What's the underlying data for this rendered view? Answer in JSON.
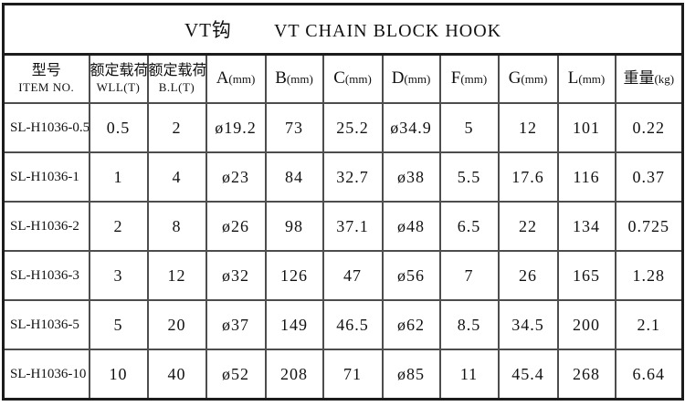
{
  "title": {
    "cn": "VT钩",
    "en": "VT CHAIN BLOCK HOOK"
  },
  "table": {
    "columns": [
      {
        "cn": "型号",
        "en": "ITEM NO."
      },
      {
        "cn": "额定载荷",
        "en": "WLL(T)"
      },
      {
        "cn": "额定载荷",
        "en": "B.L(T)"
      },
      {
        "label": "A",
        "unit": "(mm)"
      },
      {
        "label": "B",
        "unit": "(mm)"
      },
      {
        "label": "C",
        "unit": "(mm)"
      },
      {
        "label": "D",
        "unit": "(mm)"
      },
      {
        "label": "F",
        "unit": "(mm)"
      },
      {
        "label": "G",
        "unit": "(mm)"
      },
      {
        "label": "L",
        "unit": "(mm)"
      },
      {
        "label": "重量",
        "unit": "(kg)"
      }
    ],
    "rows": [
      [
        "SL-H1036-0.5",
        "0.5",
        "2",
        "ø19.2",
        "73",
        "25.2",
        "ø34.9",
        "5",
        "12",
        "101",
        "0.22"
      ],
      [
        "SL-H1036-1",
        "1",
        "4",
        "ø23",
        "84",
        "32.7",
        "ø38",
        "5.5",
        "17.6",
        "116",
        "0.37"
      ],
      [
        "SL-H1036-2",
        "2",
        "8",
        "ø26",
        "98",
        "37.1",
        "ø48",
        "6.5",
        "22",
        "134",
        "0.725"
      ],
      [
        "SL-H1036-3",
        "3",
        "12",
        "ø32",
        "126",
        "47",
        "ø56",
        "7",
        "26",
        "165",
        "1.28"
      ],
      [
        "SL-H1036-5",
        "5",
        "20",
        "ø37",
        "149",
        "46.5",
        "ø62",
        "8.5",
        "34.5",
        "200",
        "2.1"
      ],
      [
        "SL-H1036-10",
        "10",
        "40",
        "ø52",
        "208",
        "71",
        "ø85",
        "11",
        "45.4",
        "268",
        "6.64"
      ]
    ]
  },
  "colors": {
    "background": "#ffffff",
    "text": "#111111",
    "grid_line": "#4d4d4d",
    "outer_border": "#1c1c1c"
  }
}
